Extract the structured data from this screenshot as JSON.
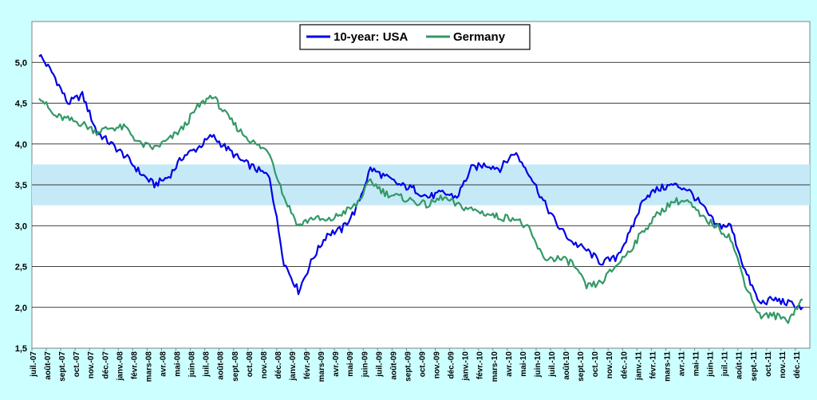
{
  "chart_data": {
    "type": "line",
    "title": "",
    "xlabel": "",
    "ylabel": "",
    "ylim": [
      1.5,
      5.5
    ],
    "yticks": [
      "1,5",
      "2,0",
      "2,5",
      "3,0",
      "3,5",
      "4,0",
      "4,5",
      "5,0"
    ],
    "grid": true,
    "legend_position": "top-center",
    "shaded_band": {
      "from": 3.25,
      "to": 3.75,
      "color": "#c6e9f7"
    },
    "x_categories": [
      "juil.-07",
      "août-07",
      "sept.-07",
      "oct.-07",
      "nov.-07",
      "déc.-07",
      "janv.-08",
      "févr.-08",
      "mars-08",
      "avr.-08",
      "mai-08",
      "juin-08",
      "juil.-08",
      "août-08",
      "sept.-08",
      "oct.-08",
      "nov.-08",
      "déc.-08",
      "janv.-09",
      "févr.-09",
      "mars-09",
      "avr.-09",
      "mai-09",
      "juin-09",
      "juil.-09",
      "août-09",
      "sept.-09",
      "oct.-09",
      "nov.-09",
      "déc.-09",
      "janv.-10",
      "févr.-10",
      "mars-10",
      "avr.-10",
      "mai-10",
      "juin-10",
      "juil.-10",
      "août-10",
      "sept.-10",
      "oct.-10",
      "nov.-10",
      "déc.-10",
      "janv.-11",
      "févr.-11",
      "mars-11",
      "avr.-11",
      "mai-11",
      "juin-11",
      "juil.-11",
      "août-11",
      "sept.-11",
      "oct.-11",
      "nov.-11",
      "déc.-11"
    ],
    "series": [
      {
        "name": "10-year: USA",
        "color": "#0000e6",
        "values": [
          5.1,
          4.85,
          4.5,
          4.6,
          4.15,
          4.0,
          3.85,
          3.65,
          3.5,
          3.6,
          3.85,
          3.95,
          4.1,
          3.95,
          3.8,
          3.7,
          3.6,
          2.55,
          2.2,
          2.6,
          2.9,
          2.95,
          3.2,
          3.7,
          3.6,
          3.5,
          3.45,
          3.35,
          3.4,
          3.35,
          3.7,
          3.75,
          3.7,
          3.9,
          3.65,
          3.3,
          3.0,
          2.8,
          2.7,
          2.55,
          2.6,
          2.9,
          3.35,
          3.45,
          3.5,
          3.45,
          3.25,
          3.0,
          3.0,
          2.45,
          2.05,
          2.1,
          2.05,
          2.0
        ]
      },
      {
        "name": "Germany",
        "color": "#339966",
        "values": [
          4.6,
          4.35,
          4.3,
          4.25,
          4.15,
          4.2,
          4.2,
          4.0,
          3.95,
          4.05,
          4.2,
          4.45,
          4.6,
          4.35,
          4.15,
          4.0,
          3.9,
          3.35,
          3.0,
          3.1,
          3.05,
          3.15,
          3.25,
          3.55,
          3.4,
          3.35,
          3.3,
          3.25,
          3.35,
          3.25,
          3.2,
          3.15,
          3.1,
          3.1,
          2.95,
          2.6,
          2.6,
          2.55,
          2.25,
          2.3,
          2.5,
          2.7,
          2.95,
          3.15,
          3.3,
          3.3,
          3.1,
          3.0,
          2.85,
          2.3,
          1.9,
          1.9,
          1.85,
          2.1
        ]
      }
    ]
  }
}
